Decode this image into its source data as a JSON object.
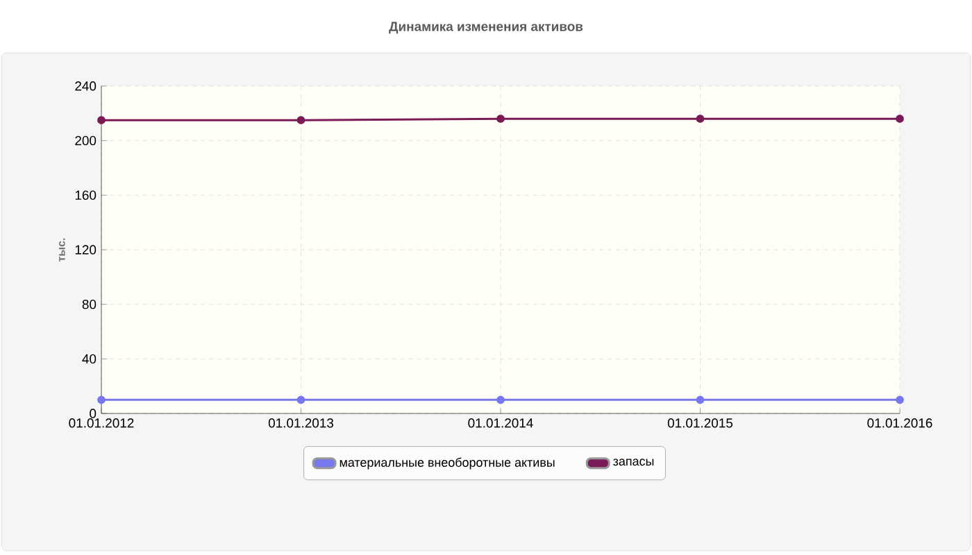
{
  "chart_data": {
    "type": "line",
    "title": "Динамика изменения активов",
    "ylabel": "тыс.",
    "categories": [
      "01.01.2012",
      "01.01.2013",
      "01.01.2014",
      "01.01.2015",
      "01.01.2016"
    ],
    "series": [
      {
        "name": "материальные внеоборотные активы",
        "color": "#7777ee",
        "values": [
          10,
          10,
          10,
          10,
          10
        ]
      },
      {
        "name": "запасы",
        "color": "#7a1a56",
        "values": [
          215,
          215,
          216,
          216,
          216
        ]
      }
    ],
    "ylim": [
      0,
      240
    ],
    "yticks": [
      0,
      40,
      80,
      120,
      160,
      200,
      240
    ],
    "grid": true,
    "legend": "bottom",
    "marker": "circle",
    "line_style": "solid"
  }
}
